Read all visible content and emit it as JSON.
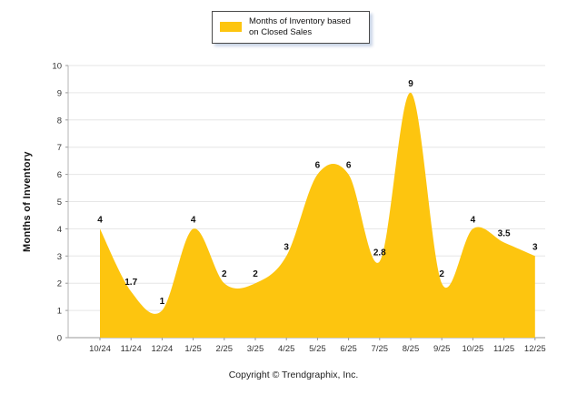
{
  "legend": {
    "label": "Months of Inventory based on Closed Sales",
    "swatch_color": "#FDC50F"
  },
  "footer": {
    "copyright": "Copyright © Trendgraphix, Inc."
  },
  "chart_data": {
    "type": "area",
    "title": "",
    "xlabel": "",
    "ylabel": "Months of Inventory",
    "ylim": [
      0,
      10
    ],
    "y_ticks": [
      0,
      1,
      2,
      3,
      4,
      5,
      6,
      7,
      8,
      9,
      10
    ],
    "grid": true,
    "legend_position": "top",
    "categories": [
      "10/24",
      "11/24",
      "12/24",
      "1/25",
      "2/25",
      "3/25",
      "4/25",
      "5/25",
      "6/25",
      "7/25",
      "8/25",
      "9/25",
      "10/25",
      "11/25",
      "12/25"
    ],
    "series": [
      {
        "name": "Months of Inventory based on Closed Sales",
        "color": "#FDC50F",
        "values": [
          4,
          1.7,
          1,
          4,
          2,
          2,
          3,
          6,
          6,
          2.8,
          9,
          2,
          4,
          3.5,
          3
        ],
        "labels": [
          "4",
          "1.7",
          "1",
          "4",
          "2",
          "2",
          "3",
          "6",
          "6",
          "2.8",
          "9",
          "2",
          "4",
          "3.5",
          "3"
        ]
      }
    ]
  }
}
